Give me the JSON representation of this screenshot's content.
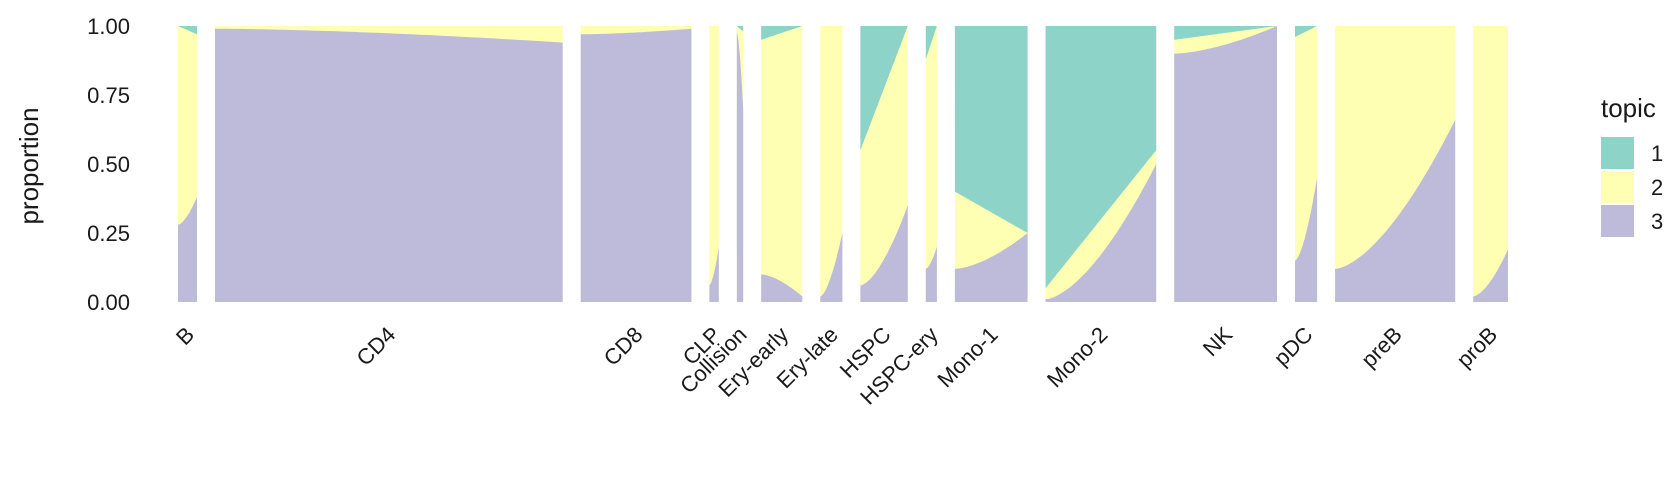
{
  "chart_data": {
    "type": "bar",
    "stacked": true,
    "xlabel": "",
    "ylabel": "proportion",
    "ylim": [
      0,
      1
    ],
    "yticks": [
      "0.00",
      "0.25",
      "0.50",
      "0.75",
      "1.00"
    ],
    "grid": false,
    "legend": {
      "title": "topic",
      "placement": "right",
      "entries": [
        {
          "label": "1",
          "color": "#8DD3C7"
        },
        {
          "label": "2",
          "color": "#FFFFB3"
        },
        {
          "label": "3",
          "color": "#BEBADA"
        }
      ]
    },
    "groups": [
      {
        "label": "B",
        "n": 12,
        "topic3": [
          0.28,
          0.38
        ],
        "topic1": [
          0.0,
          0.03
        ]
      },
      {
        "label": "CD4",
        "n": 220,
        "topic3": [
          0.99,
          0.94
        ],
        "topic1": [
          0.0,
          0.0
        ]
      },
      {
        "label": "CD8",
        "n": 70,
        "topic3": [
          0.97,
          0.99
        ],
        "topic1": [
          0.0,
          0.0
        ]
      },
      {
        "label": "CLP",
        "n": 6,
        "topic3": [
          0.06,
          0.2
        ],
        "topic1": [
          0.0,
          0.0
        ]
      },
      {
        "label": "Collision",
        "n": 4,
        "topic3": [
          0.98,
          0.7
        ],
        "topic1": [
          0.0,
          0.02
        ]
      },
      {
        "label": "Ery-early",
        "n": 26,
        "topic3": [
          0.1,
          0.02
        ],
        "topic1": [
          0.05,
          0.0
        ]
      },
      {
        "label": "Ery-late",
        "n": 14,
        "topic3": [
          0.02,
          0.25
        ],
        "topic1": [
          0.0,
          0.0
        ]
      },
      {
        "label": "HSPC",
        "n": 30,
        "topic3": [
          0.06,
          0.35
        ],
        "topic1": [
          0.45,
          0.0
        ]
      },
      {
        "label": "HSPC-ery",
        "n": 7,
        "topic3": [
          0.12,
          0.2
        ],
        "topic1": [
          0.12,
          0.0
        ]
      },
      {
        "label": "Mono-1",
        "n": 46,
        "topic3": [
          0.12,
          0.25
        ],
        "topic1": [
          0.6,
          0.75
        ]
      },
      {
        "label": "Mono-2",
        "n": 70,
        "topic3": [
          0.01,
          0.5
        ],
        "topic1": [
          0.95,
          0.45
        ]
      },
      {
        "label": "NK",
        "n": 65,
        "topic3": [
          0.9,
          1.0
        ],
        "topic1": [
          0.05,
          0.0
        ]
      },
      {
        "label": "pDC",
        "n": 14,
        "topic3": [
          0.15,
          0.45
        ],
        "topic1": [
          0.04,
          0.0
        ]
      },
      {
        "label": "preB",
        "n": 76,
        "topic3": [
          0.12,
          0.66
        ],
        "topic1": [
          0.0,
          0.0
        ]
      },
      {
        "label": "proB",
        "n": 22,
        "topic3": [
          0.02,
          0.19
        ],
        "topic1": [
          0.0,
          0.0
        ]
      }
    ]
  }
}
